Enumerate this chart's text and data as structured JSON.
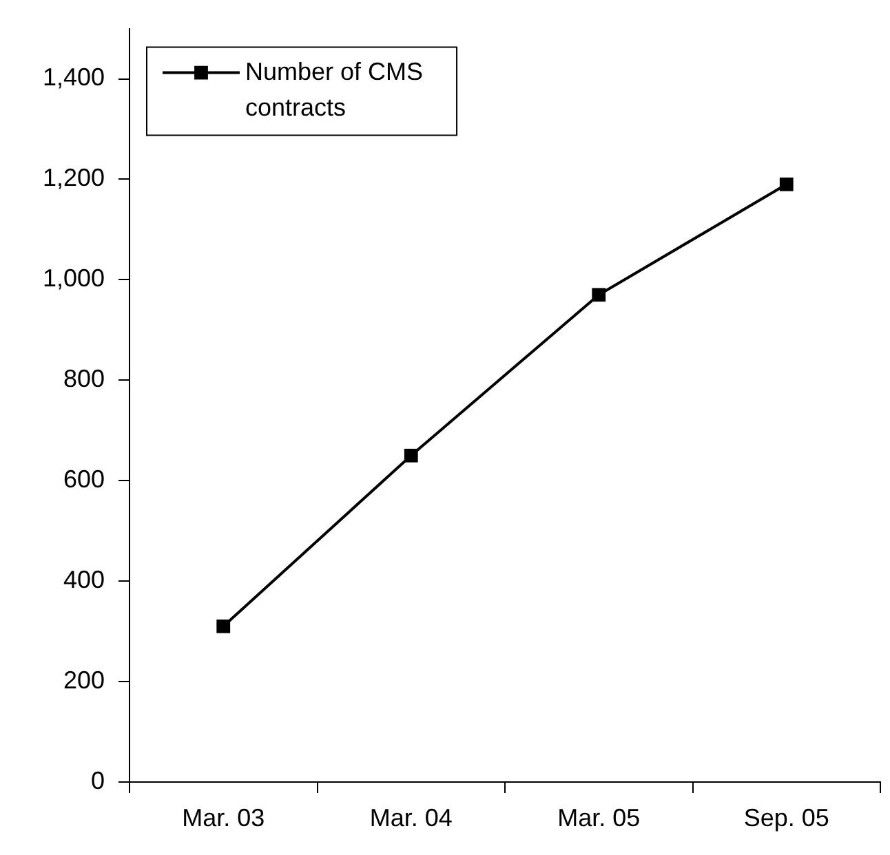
{
  "chart_data": {
    "type": "line",
    "categories": [
      "Mar. 03",
      "Mar. 04",
      "Mar. 05",
      "Sep. 05"
    ],
    "series": [
      {
        "name": "Number of CMS contracts",
        "color": "#000000",
        "values": [
          310,
          650,
          970,
          1190
        ]
      }
    ],
    "ylim": [
      0,
      1500
    ],
    "yticks": [
      0,
      200,
      400,
      600,
      800,
      {
        "value": 1000,
        "label": "1,000"
      },
      {
        "value": 1200,
        "label": "1,200"
      },
      {
        "value": 1400,
        "label": "1,400"
      }
    ],
    "grid": false,
    "legend": "top left",
    "marker": "square",
    "line_style": "solid"
  }
}
